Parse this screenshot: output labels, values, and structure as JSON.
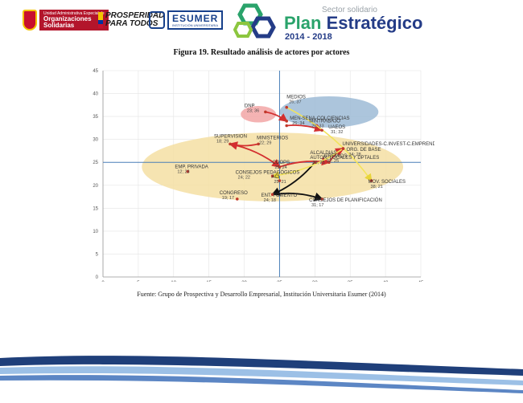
{
  "header": {
    "gov_logo_top": "Unidad Administrativa Especial de",
    "gov_logo_main_1": "Organizaciones",
    "gov_logo_main_2": "Solidarias",
    "prosperidad_line1": "PROSPERIDAD",
    "prosperidad_line2": "PARA TODOS",
    "esumer_name": "ESUMER",
    "esumer_sub": "INSTITUCIÓN UNIVERSITARIA",
    "plan_line1": "Sector solidario",
    "plan_word1": "Plan ",
    "plan_word2": "Estratégico",
    "plan_years": "2014 - 2018"
  },
  "figure_caption": "Figura  19. Resultado análisis de actores por actores",
  "source_note": "Fuente: Grupo de Prospectiva y Desarrollo Empresarial, Institución Universitaria Esumer (2014)",
  "colors": {
    "point": "#c0392b",
    "arrow_red": "#d32f2f",
    "arrow_black": "#111111",
    "arrow_yellow": "#f2e35b",
    "ellipse_yellow": "#f5dfa3",
    "ellipse_blue": "#9dbbd6",
    "ellipse_pink": "#f2a6a6",
    "crosshair": "#4a7fb8",
    "grid": "#e4e4e4",
    "footer_blue_dark": "#1f3f7a",
    "footer_blue_light": "#9cc0e6"
  },
  "chart_data": {
    "type": "scatter",
    "title": "",
    "xlabel": "",
    "ylabel": "",
    "xlim": [
      0,
      45
    ],
    "ylim": [
      0,
      45
    ],
    "xticks": [
      0,
      5,
      10,
      15,
      20,
      25,
      30,
      35,
      40,
      45
    ],
    "yticks": [
      0,
      5,
      10,
      15,
      20,
      25,
      30,
      35,
      40,
      45
    ],
    "grid": true,
    "crosshair": {
      "x": 25,
      "y": 25
    },
    "points": [
      {
        "name": "MEDIOS",
        "value_label": "26; 37",
        "x": 26,
        "y": 37
      },
      {
        "name": "DNP",
        "value_label": "23; 36",
        "x": 23,
        "y": 36
      },
      {
        "name": "MEN-SENA-COLCIENCIAS",
        "value_label": "26; 34",
        "x": 26,
        "y": 34
      },
      {
        "name": "MINTRABAJO",
        "value_label": "26; 33",
        "x": 26,
        "y": 33
      },
      {
        "name": "UAEOS",
        "value_label": "31; 32",
        "x": 31,
        "y": 32
      },
      {
        "name": "SUPERVISION",
        "value_label": "18; 29",
        "x": 18,
        "y": 29
      },
      {
        "name": "MINISTERIOS",
        "value_label": "22; 29",
        "x": 22,
        "y": 29
      },
      {
        "name": "UNIVERSIDADES-C.INVEST-C.EMPREND.",
        "value_label": "34; 28",
        "x": 34,
        "y": 28
      },
      {
        "name": "ORG. DE BASE",
        "value_label": "34; 28",
        "x": 34,
        "y": 28
      },
      {
        "name": "GREMIOS",
        "value_label": "32; 25",
        "x": 32,
        "y": 25
      },
      {
        "name": "COOPS",
        "value_label": "25; 24",
        "x": 25,
        "y": 24
      },
      {
        "name": "EMP. PRIVADA",
        "value_label": "12; 23",
        "x": 12,
        "y": 23
      },
      {
        "name": "ALCALDIAS",
        "value_label": "30; 25",
        "x": 30,
        "y": 25
      },
      {
        "name": "AUTOR. LOCALES Y DPTALES",
        "value_label": "30; 25",
        "x": 30,
        "y": 25
      },
      {
        "name": "CONSEJOS PEDAGÓGICOS",
        "value_label": "24; 22",
        "x": 24,
        "y": 22
      },
      {
        "name": "ACI",
        "value_label": "25; 21",
        "x": 25,
        "y": 21
      },
      {
        "name": "MOV. SOCIALES",
        "value_label": "38; 21",
        "x": 38,
        "y": 21
      },
      {
        "name": "CONGRESO",
        "value_label": "19; 17",
        "x": 19,
        "y": 17
      },
      {
        "name": "ENT. FOMENTO",
        "value_label": "24; 18",
        "x": 24,
        "y": 18
      },
      {
        "name": "CONSEJOS DE PLANIFICACIÓN",
        "value_label": "31; 17",
        "x": 31,
        "y": 17
      }
    ],
    "ellipses": [
      {
        "cx": 24,
        "cy": 24,
        "rx": 18.5,
        "ry": 7.5,
        "color": "yellow"
      },
      {
        "cx": 32,
        "cy": 36,
        "rx": 7,
        "ry": 3.4,
        "color": "blue"
      },
      {
        "cx": 22,
        "cy": 35.5,
        "rx": 2.5,
        "ry": 1.8,
        "color": "pink"
      }
    ],
    "arrows": [
      {
        "from": "DNP",
        "to": "MEN-SENA-COLCIENCIAS",
        "color": "red"
      },
      {
        "from": "MINTRABAJO",
        "to": "UAEOS",
        "color": "red"
      },
      {
        "from": "MINISTERIOS",
        "to": "SUPERVISION",
        "color": "red"
      },
      {
        "from": "SUPERVISION",
        "to": "COOPS",
        "color": "red"
      },
      {
        "from": "COOPS",
        "to": "GREMIOS",
        "color": "red"
      },
      {
        "from": "GREMIOS",
        "to": "ORG. DE BASE",
        "color": "red"
      },
      {
        "from": "ALCALDIAS",
        "to": "ENT. FOMENTO",
        "color": "black"
      },
      {
        "from": "ENT. FOMENTO",
        "to": "CONSEJOS DE PLANIFICACIÓN",
        "color": "black"
      },
      {
        "from": "UNIVERSIDADES-C.INVEST-C.EMPREND.",
        "to": "CONSEJOS PEDAGÓGICOS",
        "color": "yellow"
      },
      {
        "from": "MEDIOS",
        "to": "MOV. SOCIALES",
        "color": "yellow"
      }
    ]
  }
}
